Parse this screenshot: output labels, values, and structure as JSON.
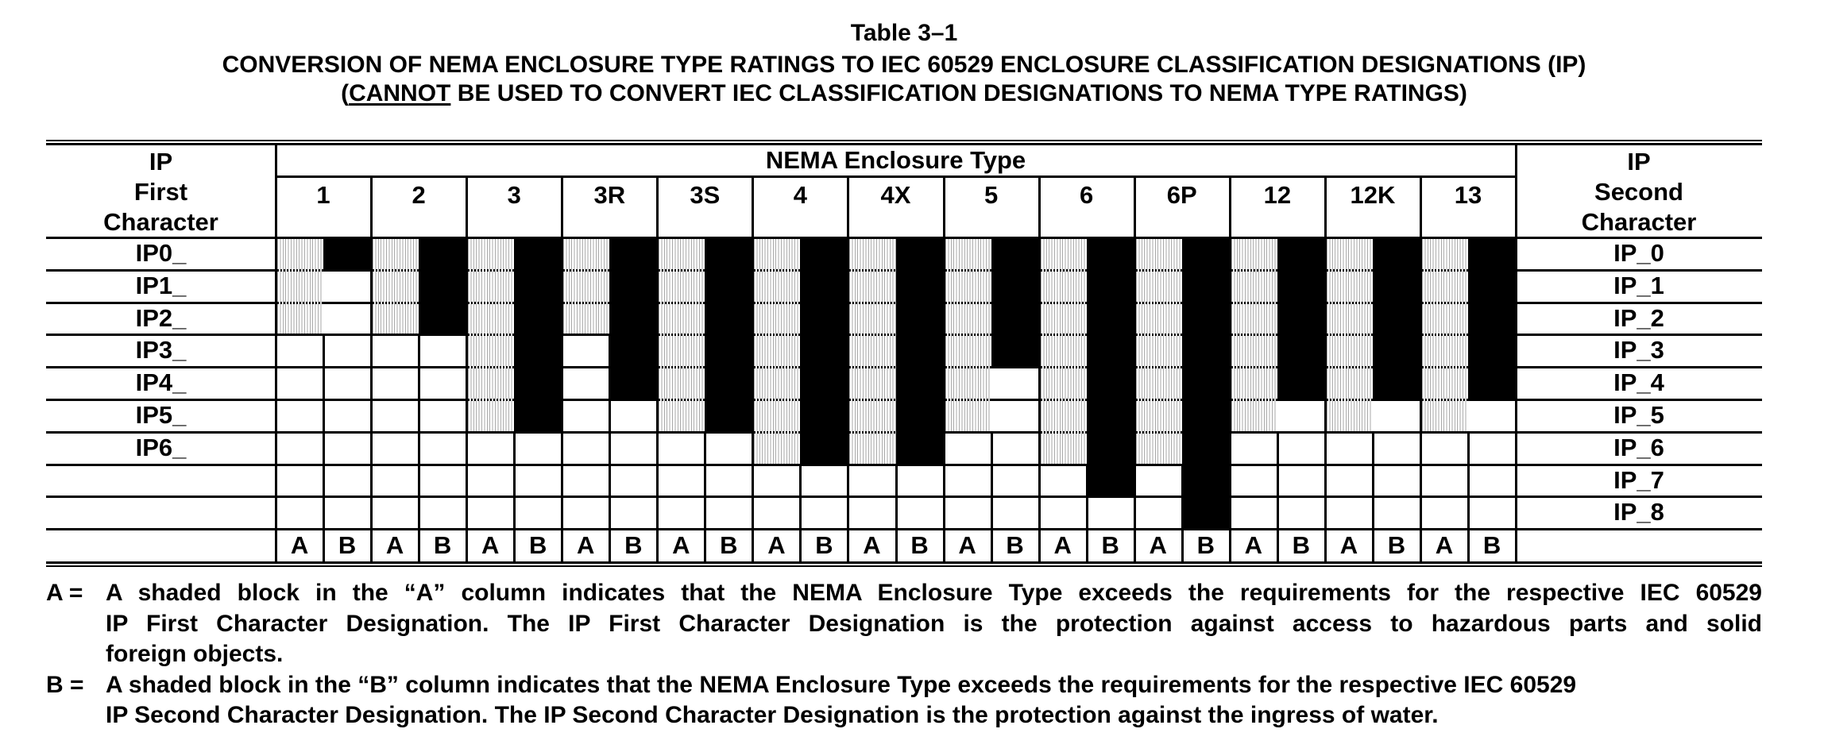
{
  "title": {
    "line1": "Table 3–1",
    "line2": "CONVERSION OF NEMA ENCLOSURE TYPE RATINGS TO IEC 60529 ENCLOSURE CLASSIFICATION DESIGNATIONS (IP)",
    "line3_open": "(",
    "line3_underlined": "CANNOT",
    "line3_rest": " BE USED TO CONVERT IEC CLASSIFICATION DESIGNATIONS TO NEMA TYPE RATINGS)"
  },
  "table": {
    "left_header": [
      "IP",
      "First",
      "Character"
    ],
    "right_header": [
      "IP",
      "Second",
      "Character"
    ],
    "group_header": "NEMA Enclosure Type",
    "types": [
      "1",
      "2",
      "3",
      "3R",
      "3S",
      "4",
      "4X",
      "5",
      "6",
      "6P",
      "12",
      "12K",
      "13"
    ],
    "sub_columns": [
      "A",
      "B"
    ],
    "first_char_rows": [
      "IP0_",
      "IP1_",
      "IP2_",
      "IP3_",
      "IP4_",
      "IP5_",
      "IP6_",
      "",
      ""
    ],
    "second_char_rows": [
      "IP_0",
      "IP_1",
      "IP_2",
      "IP_3",
      "IP_4",
      "IP_5",
      "IP_6",
      "IP_7",
      "IP_8"
    ],
    "legend": {
      "A_shading": "hatched gray (exceeds IP first character)",
      "B_shading": "solid black (exceeds IP second character)"
    },
    "colors": {
      "hatch": "#aaaaaa",
      "solid": "#000000",
      "grid": "#000000"
    }
  },
  "chart_data": {
    "type": "table",
    "title": "Table 3–1 Conversion of NEMA Enclosure Type Ratings to IEC 60529 Enclosure Classification Designations (IP)",
    "columns": [
      "1",
      "2",
      "3",
      "3R",
      "3S",
      "4",
      "4X",
      "5",
      "6",
      "6P",
      "12",
      "12K",
      "13"
    ],
    "max_ip_first_character_A": [
      2,
      2,
      5,
      2,
      5,
      6,
      6,
      5,
      6,
      6,
      5,
      5,
      5
    ],
    "max_ip_second_character_B": [
      0,
      2,
      5,
      4,
      5,
      6,
      6,
      3,
      7,
      8,
      4,
      4,
      4
    ],
    "shaded_rows_A_inclusive_from_0": "A column shaded from IP0_ through the listed max first character",
    "shaded_rows_B_inclusive_from_0": "B column shaded from IP_0 through the listed max second character"
  },
  "notes": [
    {
      "label": "A =",
      "lines": [
        "A shaded block in the “A” column indicates that the NEMA Enclosure Type exceeds the requirements for the respective IEC 60529",
        "IP First Character Designation.  The IP First Character Designation is the protection against access to hazardous parts and solid",
        "foreign objects."
      ]
    },
    {
      "label": "B =",
      "lines": [
        "A shaded block in the “B” column indicates that the NEMA Enclosure Type exceeds the requirements for the respective IEC 60529",
        "IP Second Character Designation.  The IP Second Character Designation is the protection against the ingress of water."
      ]
    }
  ]
}
